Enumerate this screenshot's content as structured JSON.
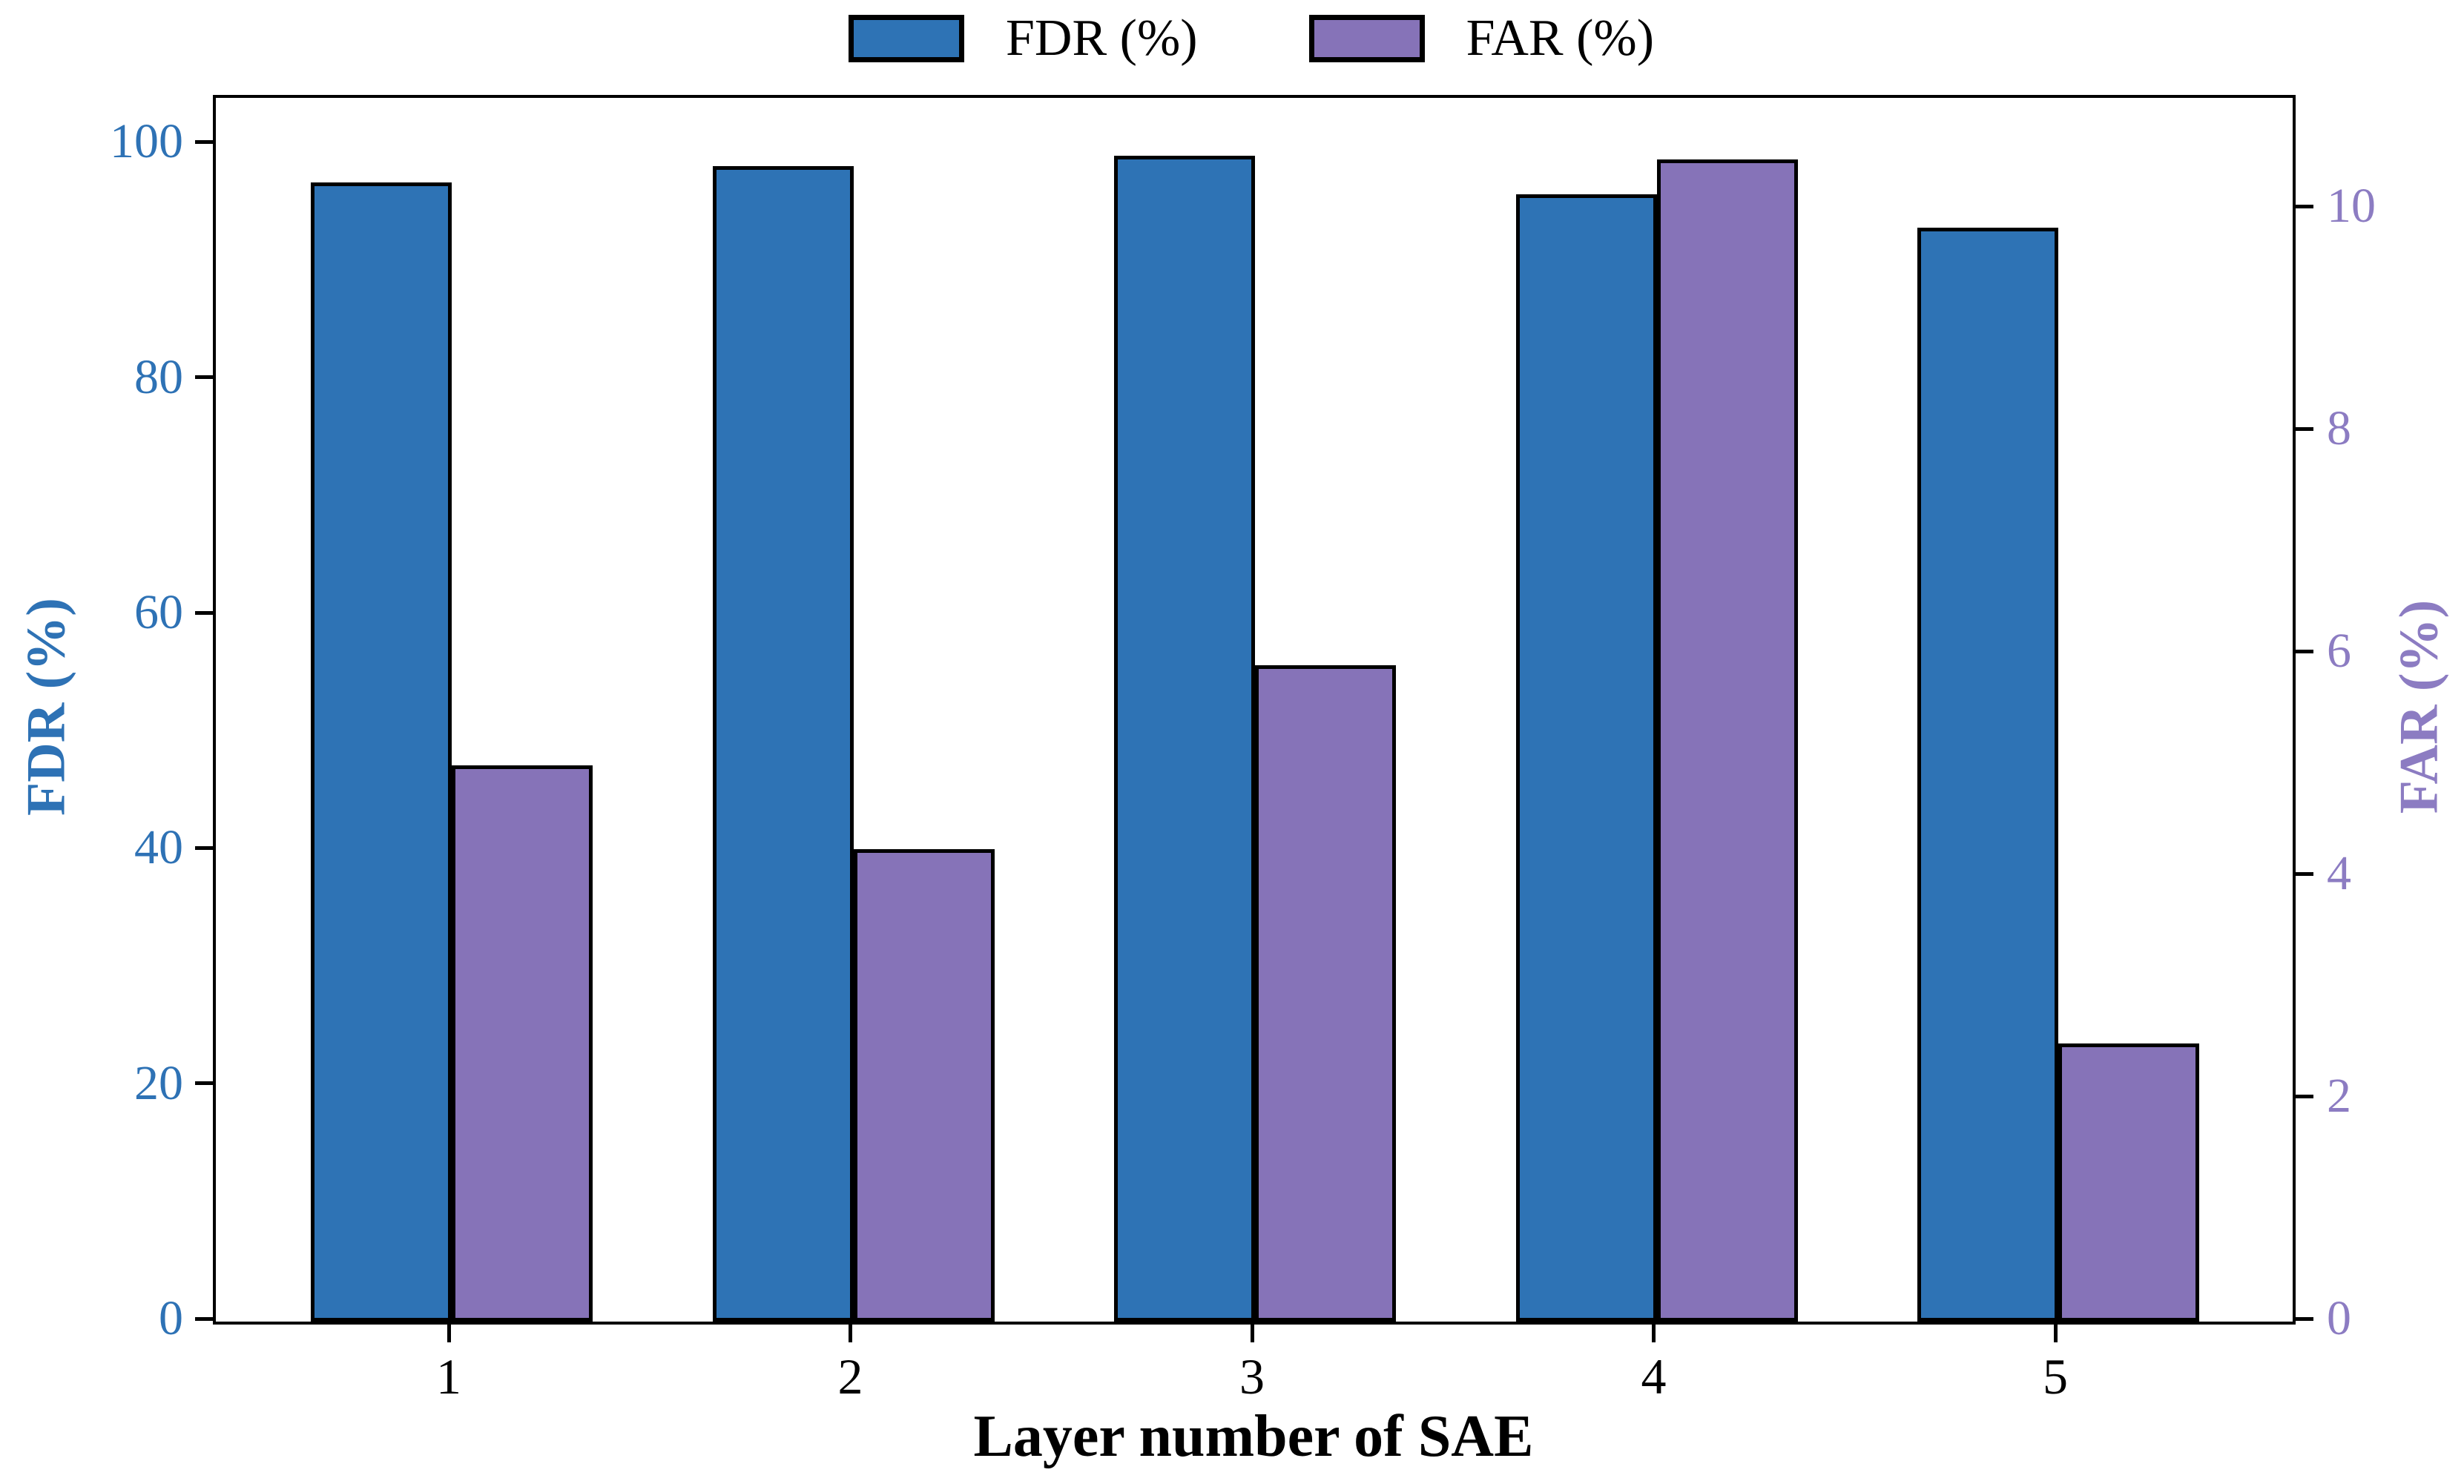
{
  "legend": {
    "items": [
      {
        "label": "FDR (%)",
        "color": "#2E73B5"
      },
      {
        "label": "FAR (%)",
        "color": "#8673B8"
      }
    ]
  },
  "x_axis": {
    "title": "Layer number of SAE",
    "tick_labels": [
      "1",
      "2",
      "3",
      "4",
      "5"
    ]
  },
  "y_axis_left": {
    "title": "FDR (%)",
    "color": "#2E72B5",
    "ticks": [
      0,
      20,
      40,
      60,
      80,
      100
    ],
    "range": [
      0,
      104
    ]
  },
  "y_axis_right": {
    "title": "FAR (%)",
    "color": "#8C7CC2",
    "ticks": [
      0,
      2,
      4,
      6,
      8,
      10
    ],
    "range": [
      0,
      11
    ]
  },
  "chart_data": {
    "type": "bar",
    "categories": [
      "1",
      "2",
      "3",
      "4",
      "5"
    ],
    "xlabel": "Layer number of SAE",
    "series": [
      {
        "name": "FDR (%)",
        "axis": "left",
        "color": "#2E73B5",
        "values": [
          96.8,
          98.2,
          99.1,
          95.8,
          93.0
        ]
      },
      {
        "name": "FAR (%)",
        "axis": "right",
        "color": "#8673B8",
        "values": [
          5.0,
          4.25,
          5.9,
          10.45,
          2.5
        ]
      }
    ],
    "ylim_left": [
      0,
      104
    ],
    "ylim_right": [
      0,
      11
    ],
    "yticks_left": [
      0,
      20,
      40,
      60,
      80,
      100
    ],
    "yticks_right": [
      0,
      2,
      4,
      6,
      8,
      10
    ],
    "legend_position": "top-center",
    "grid": false,
    "bar_edge_color": "#000000"
  }
}
